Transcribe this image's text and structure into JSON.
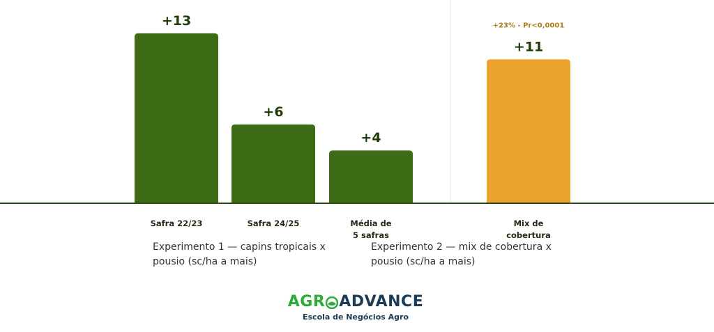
{
  "chart_data": [
    {
      "type": "bar",
      "categories": [
        "Safra 22/23",
        "Safra 24/25",
        "Média de 5 safras"
      ],
      "category_lines": [
        [
          "Safra 22/23"
        ],
        [
          "Safra 24/25"
        ],
        [
          "Média de",
          "5 safras"
        ]
      ],
      "values": [
        13,
        6,
        4
      ],
      "value_labels": [
        "+13",
        "+6",
        "+4"
      ],
      "color": "#3d6b16",
      "caption": "Experimento 1 — capins tropicais x pousio (sc/ha a mais)"
    },
    {
      "type": "bar",
      "categories": [
        "Mix de cobertura"
      ],
      "category_lines": [
        [
          "Mix de",
          "cobertura"
        ]
      ],
      "values": [
        11
      ],
      "value_labels": [
        "+11"
      ],
      "annotation": "+23% - Pr<0,0001",
      "color": "#eba22e",
      "caption": "Experimento 2 — mix de cobertura x pousio (sc/ha a mais)"
    }
  ],
  "colors": {
    "green_bar": "#3d6b16",
    "orange_bar": "#eba22e",
    "annotation": "#b07d1a",
    "value_label": "#1f3b0b",
    "axis": "#2c4a10"
  },
  "logo": {
    "brand_left": "AGR",
    "brand_right": "ADVANCE",
    "tagline": "Escola de Negócios Agro"
  }
}
